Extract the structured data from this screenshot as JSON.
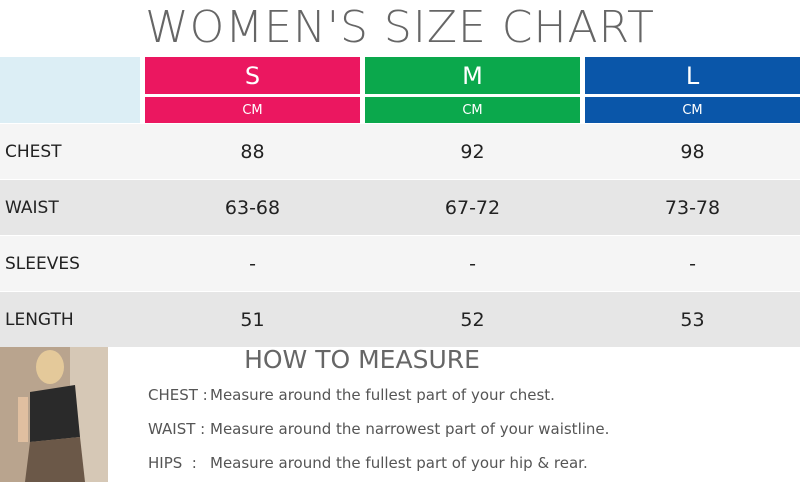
{
  "title": "WOMEN'S SIZE CHART",
  "sizes": [
    {
      "label": "S",
      "unit": "CM",
      "color": "#eb1760"
    },
    {
      "label": "M",
      "unit": "CM",
      "color": "#0ba84c"
    },
    {
      "label": "L",
      "unit": "CM",
      "color": "#0a56a9"
    }
  ],
  "rows": [
    {
      "label": "CHEST",
      "values": [
        "88",
        "92",
        "98"
      ]
    },
    {
      "label": "WAIST",
      "values": [
        "63-68",
        "67-72",
        "73-78"
      ]
    },
    {
      "label": "SLEEVES",
      "values": [
        "-",
        "-",
        "-"
      ]
    },
    {
      "label": "LENGTH",
      "values": [
        "51",
        "52",
        "53"
      ]
    }
  ],
  "measure": {
    "title": "HOW TO MEASURE",
    "items": [
      {
        "label": "CHEST :",
        "text": "Measure around the fullest part of your chest."
      },
      {
        "label": "WAIST :",
        "text": "Measure around the narrowest part of your waistline."
      },
      {
        "label": "HIPS  :",
        "text": "Measure around the fullest part of your hip & rear."
      }
    ]
  }
}
